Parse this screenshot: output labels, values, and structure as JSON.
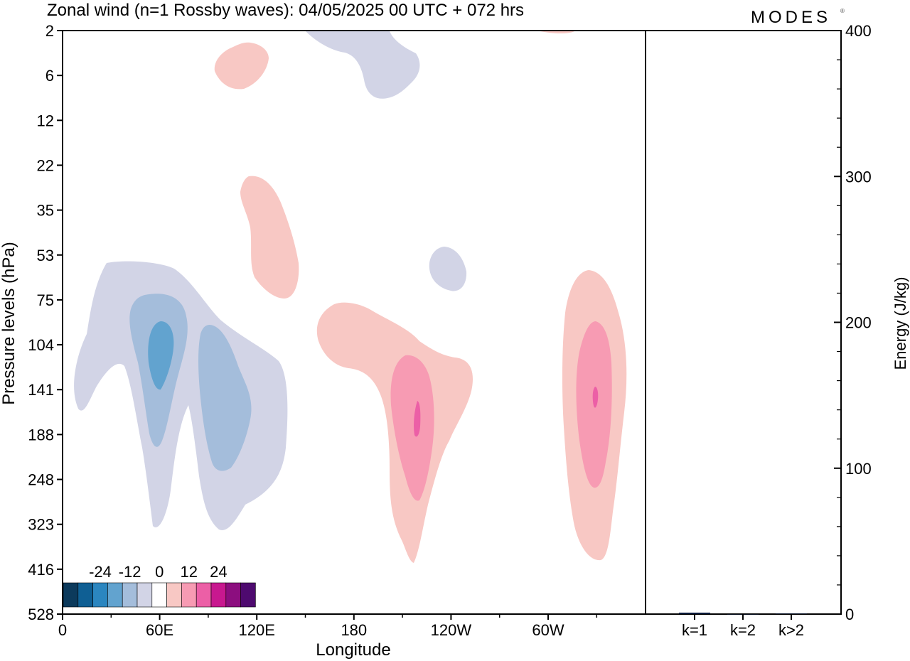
{
  "title": "Zonal wind (n=1 Rossby waves):  04/05/2025  00 UTC  + 072 hrs",
  "logo": "MODES",
  "chart_data": [
    {
      "type": "heatmap",
      "title": "Zonal wind (n=1 Rossby waves):  04/05/2025  00 UTC  + 072 hrs",
      "xlabel": "Longitude",
      "ylabel": "Pressure levels (hPa)",
      "x_ticks": [
        "0",
        "60E",
        "120E",
        "180",
        "120W",
        "60W"
      ],
      "y_ticks": [
        "2",
        "6",
        "12",
        "22",
        "35",
        "53",
        "75",
        "104",
        "141",
        "188",
        "248",
        "323",
        "416",
        "528"
      ],
      "colorbar": {
        "tick_labels": [
          "-24",
          "-12",
          "0",
          "12",
          "24"
        ],
        "levels": [
          -30,
          -24,
          -18,
          -12,
          -6,
          0,
          6,
          12,
          18,
          24,
          30
        ],
        "colors": [
          "#0c3a5c",
          "#0f5f94",
          "#2b86c0",
          "#62a3cf",
          "#a4bddb",
          "#d2d4e6",
          "#ffffff",
          "#f8c8c4",
          "#f79bb3",
          "#ec5fa6",
          "#c8188f",
          "#8c0e7f",
          "#4e0a6f"
        ]
      },
      "contour_regions": [
        {
          "sign": "negative",
          "level": -3,
          "color": "#d2d4e6",
          "region": "60E-120E, 53-323 hPa (main negative lobe)"
        },
        {
          "sign": "negative",
          "level": -9,
          "color": "#a4bddb",
          "region": "around 60E and 100E, 75-248 hPa"
        },
        {
          "sign": "negative",
          "level": -15,
          "color": "#62a3cf",
          "region": "near 60E, ~104-141 hPa"
        },
        {
          "sign": "negative",
          "level": -3,
          "color": "#d2d4e6",
          "region": "near 150W, 2-6 hPa"
        },
        {
          "sign": "negative",
          "level": -3,
          "color": "#d2d4e6",
          "region": "near 120W, ~53 hPa"
        },
        {
          "sign": "positive",
          "level": 3,
          "color": "#f8c8c4",
          "region": "near 110E, ~6 hPa"
        },
        {
          "sign": "positive",
          "level": 3,
          "color": "#f8c8c4",
          "region": "near 120E, 22-75 hPa"
        },
        {
          "sign": "positive",
          "level": 3,
          "color": "#f8c8c4",
          "region": "180-120W, 75-416 hPa"
        },
        {
          "sign": "positive",
          "level": 9,
          "color": "#f79bb3",
          "region": "near 140W, 104-323 hPa"
        },
        {
          "sign": "positive",
          "level": 15,
          "color": "#ec5fa6",
          "region": "near 140W, ~188 hPa"
        },
        {
          "sign": "positive",
          "level": 3,
          "color": "#f8c8c4",
          "region": "near 30W, 53-416 hPa"
        },
        {
          "sign": "positive",
          "level": 9,
          "color": "#f79bb3",
          "region": "near 30W, 104-248 hPa"
        },
        {
          "sign": "positive",
          "level": 15,
          "color": "#ec5fa6",
          "region": "near 30W, ~141 hPa"
        }
      ]
    },
    {
      "type": "bar",
      "ylabel": "Energy (J/kg)",
      "categories": [
        "k=1",
        "k=2",
        "k>2"
      ],
      "values": [
        1,
        0,
        0.3
      ],
      "ylim": [
        0,
        400
      ],
      "y_ticks": [
        "0",
        "100",
        "200",
        "300",
        "400"
      ]
    }
  ]
}
